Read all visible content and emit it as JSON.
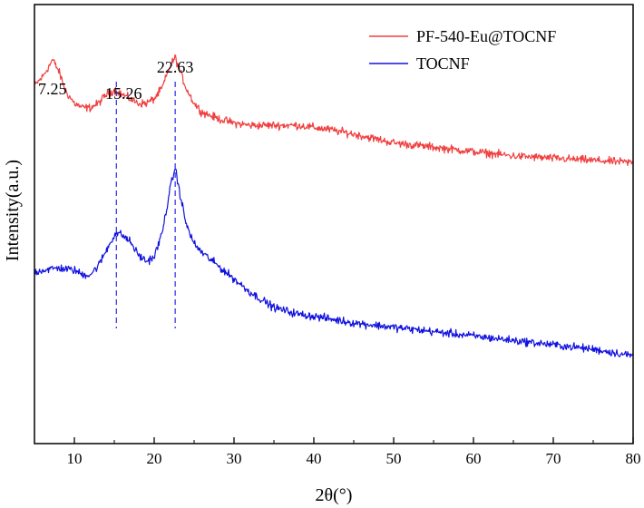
{
  "chart_data": {
    "type": "line",
    "title": "",
    "xlabel": "2θ(°)",
    "ylabel": "Intensity(a.u.)",
    "xlim": [
      5,
      80
    ],
    "xticks": [
      "10",
      "20",
      "30",
      "40",
      "50",
      "60",
      "70",
      "80"
    ],
    "ylim": [
      0,
      100
    ],
    "y_tick_labels": false,
    "legend_position": "top-right",
    "series": [
      {
        "name": "PF-540-Eu@TOCNF",
        "color": "#f04040",
        "x": [
          5,
          6,
          7,
          7.25,
          8,
          9,
          10,
          11,
          12,
          13,
          14,
          15,
          15.26,
          16,
          17,
          18,
          19,
          20,
          21,
          22,
          22.63,
          23,
          24,
          25,
          26,
          28,
          30,
          32,
          35,
          38,
          40,
          42,
          45,
          50,
          55,
          60,
          65,
          70,
          75,
          80
        ],
        "y": [
          81.5,
          83.5,
          86.5,
          87.5,
          85,
          80,
          77.5,
          76.5,
          76.5,
          77.5,
          79.5,
          80.5,
          80.5,
          79.5,
          78.5,
          77.5,
          77.5,
          78.5,
          81,
          86,
          88,
          86,
          81,
          77.5,
          75.5,
          74,
          73,
          72.5,
          72.5,
          72.5,
          72,
          71.5,
          70.5,
          68.5,
          67.5,
          66.5,
          65.5,
          65,
          64.5,
          64
        ]
      },
      {
        "name": "TOCNF",
        "color": "#1010e0",
        "x": [
          5,
          6,
          8,
          10,
          11,
          12,
          13,
          14,
          15,
          15.26,
          16,
          17,
          18,
          19,
          20,
          21,
          22,
          22.63,
          23,
          24,
          25,
          26,
          28,
          30,
          32,
          35,
          38,
          40,
          45,
          50,
          55,
          60,
          65,
          70,
          75,
          80
        ],
        "y": [
          39,
          39.5,
          40,
          39.5,
          38.5,
          38.5,
          40.5,
          44,
          47.5,
          48,
          47.5,
          46,
          43,
          41.5,
          42.5,
          48,
          58,
          63,
          59,
          50,
          45.5,
          43.5,
          40.5,
          37.5,
          34.5,
          31,
          29.5,
          29,
          27.5,
          26.5,
          25.5,
          24.5,
          23.5,
          22.5,
          21.5,
          20
        ]
      }
    ],
    "annotations": [
      {
        "text": "7.25",
        "x": 7.25,
        "line": false
      },
      {
        "text": "15.26",
        "x": 15.26,
        "line": true
      },
      {
        "text": "22.63",
        "x": 22.63,
        "line": true
      }
    ]
  }
}
